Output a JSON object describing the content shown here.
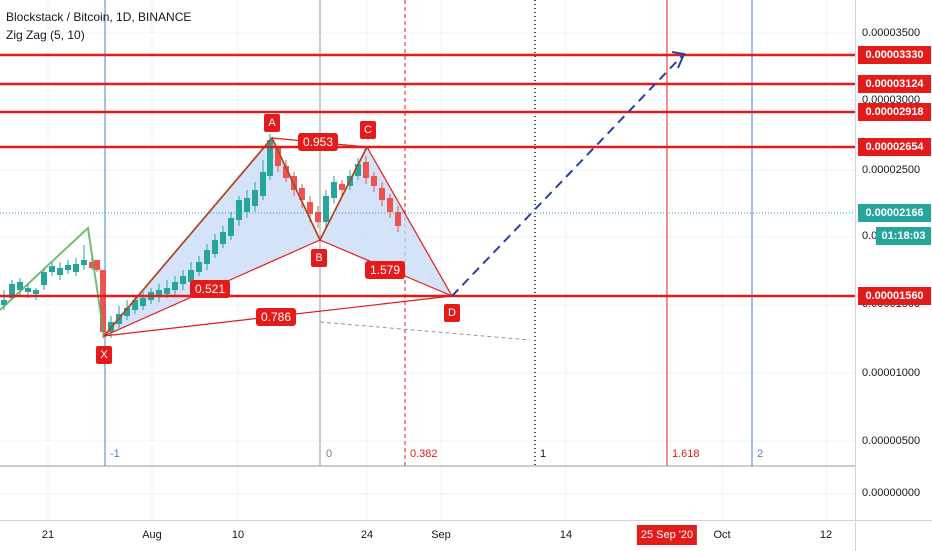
{
  "legend": {
    "symbol": "Blockstack / Bitcoin, 1D, BINANCE",
    "indicator": "Zig Zag (5, 10)"
  },
  "price_ticks": [
    "0.00003500",
    "0.00003000",
    "0.00002500",
    "0.00002000",
    "0.00001500",
    "0.00001000",
    "0.00000500",
    "0.00000000"
  ],
  "price_labels": [
    {
      "text": "0.00003330",
      "color": "#e41b1b"
    },
    {
      "text": "0.00003124",
      "color": "#e41b1b"
    },
    {
      "text": "0.00002918",
      "color": "#e41b1b"
    },
    {
      "text": "0.00002654",
      "color": "#e41b1b"
    },
    {
      "text": "0.00002166",
      "color": "#26a69a"
    },
    {
      "text": "01:18:03",
      "color": "#26a69a"
    },
    {
      "text": "0.00001560",
      "color": "#e41b1b"
    }
  ],
  "time_ticks": [
    "21",
    "Aug",
    "10",
    "24",
    "Sep",
    "14",
    "Oct",
    "12"
  ],
  "time_highlight": "25 Sep '20",
  "pattern_points": [
    "X",
    "A",
    "B",
    "C",
    "D"
  ],
  "ratios": [
    "0.953",
    "0.521",
    "1.579",
    "0.786"
  ],
  "fib_labels": [
    "-1",
    "0",
    "0.382",
    "1",
    "1.618",
    "2"
  ],
  "colors": {
    "up": "#26a69a",
    "down": "#ef5350",
    "pattern": "#e41b1b",
    "fill": "#c7d9f5",
    "projection": "#2a3fa6",
    "blue_line": "#4a7fd6",
    "zigzag": "#4caf50"
  }
}
